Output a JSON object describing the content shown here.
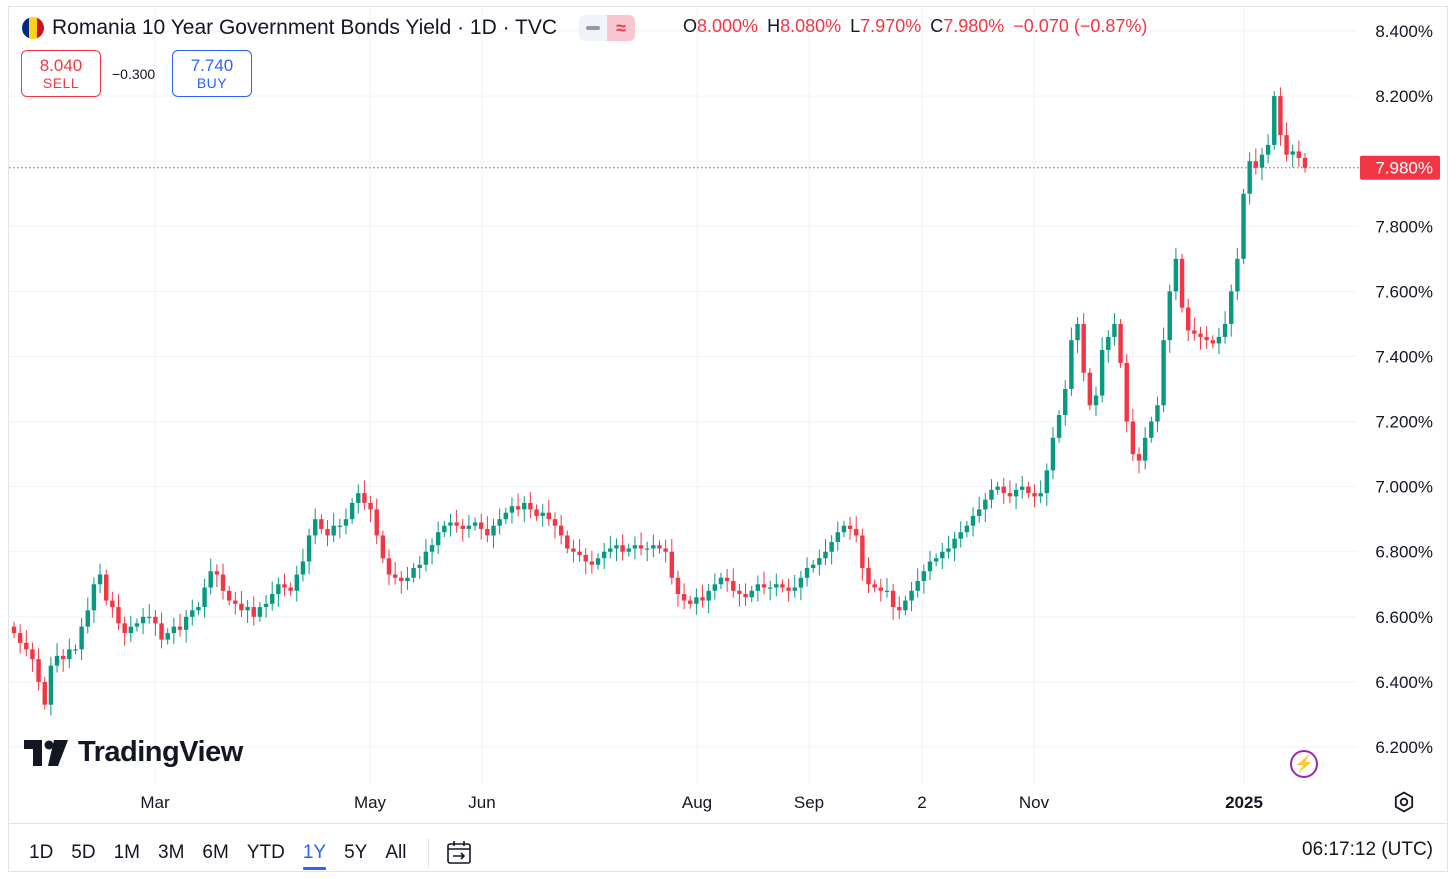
{
  "header": {
    "title": "Romania 10 Year Government Bonds Yield · 1D · TVC",
    "flag_colors": [
      "#002B7F",
      "#FCD116",
      "#CE1126"
    ],
    "ohlc": [
      {
        "key": "O",
        "value": "8.000%"
      },
      {
        "key": "H",
        "value": "8.080%"
      },
      {
        "key": "L",
        "value": "7.970%"
      },
      {
        "key": "C",
        "value": "7.980%"
      }
    ],
    "change": "−0.070 (−0.87%)"
  },
  "trade": {
    "sell_price": "8.040",
    "sell_label": "SELL",
    "spread": "−0.300",
    "buy_price": "7.740",
    "buy_label": "BUY"
  },
  "logo": {
    "text": "TradingView"
  },
  "toolbar": {
    "ranges": [
      "1D",
      "5D",
      "1M",
      "3M",
      "6M",
      "YTD",
      "1Y",
      "5Y",
      "All"
    ],
    "active_range": "1Y",
    "clock": "06:17:12 (UTC)"
  },
  "colors": {
    "up": "#089981",
    "down": "#F23645",
    "accent": "#2962FF",
    "grid": "#F0F3FA"
  },
  "chart_data": {
    "type": "candlestick",
    "y_ticks": [
      "8.400%",
      "8.200%",
      "7.800%",
      "7.600%",
      "7.400%",
      "7.200%",
      "7.000%",
      "6.800%",
      "6.600%",
      "6.400%",
      "6.200%"
    ],
    "ylim": [
      6.16,
      8.46
    ],
    "x_ticks": [
      "Mar",
      "May",
      "Jun",
      "Aug",
      "Sep",
      "2",
      "Nov",
      "2025"
    ],
    "last_value": 7.98,
    "last_label": "7.980%",
    "close_series": [
      6.55,
      6.52,
      6.5,
      6.47,
      6.4,
      6.33,
      6.45,
      6.48,
      6.47,
      6.5,
      6.5,
      6.57,
      6.62,
      6.7,
      6.73,
      6.65,
      6.63,
      6.58,
      6.55,
      6.57,
      6.58,
      6.6,
      6.6,
      6.58,
      6.53,
      6.55,
      6.57,
      6.56,
      6.6,
      6.62,
      6.63,
      6.69,
      6.74,
      6.73,
      6.68,
      6.65,
      6.64,
      6.62,
      6.63,
      6.6,
      6.63,
      6.64,
      6.67,
      6.7,
      6.69,
      6.68,
      6.73,
      6.77,
      6.85,
      6.9,
      6.87,
      6.85,
      6.88,
      6.88,
      6.9,
      6.95,
      6.98,
      6.95,
      6.93,
      6.85,
      6.78,
      6.73,
      6.72,
      6.71,
      6.72,
      6.75,
      6.76,
      6.8,
      6.82,
      6.86,
      6.88,
      6.89,
      6.88,
      6.87,
      6.88,
      6.89,
      6.87,
      6.85,
      6.88,
      6.9,
      6.92,
      6.94,
      6.93,
      6.95,
      6.93,
      6.91,
      6.92,
      6.9,
      6.88,
      6.85,
      6.81,
      6.8,
      6.79,
      6.77,
      6.76,
      6.78,
      6.8,
      6.81,
      6.82,
      6.8,
      6.81,
      6.82,
      6.81,
      6.81,
      6.82,
      6.81,
      6.8,
      6.72,
      6.67,
      6.65,
      6.64,
      6.66,
      6.65,
      6.68,
      6.7,
      6.72,
      6.71,
      6.68,
      6.67,
      6.66,
      6.68,
      6.7,
      6.69,
      6.69,
      6.7,
      6.69,
      6.68,
      6.69,
      6.72,
      6.75,
      6.76,
      6.78,
      6.8,
      6.83,
      6.86,
      6.88,
      6.87,
      6.85,
      6.75,
      6.7,
      6.69,
      6.68,
      6.68,
      6.63,
      6.62,
      6.65,
      6.68,
      6.71,
      6.74,
      6.77,
      6.78,
      6.8,
      6.81,
      6.84,
      6.86,
      6.88,
      6.91,
      6.93,
      6.96,
      6.99,
      7.0,
      6.98,
      6.97,
      6.99,
      7.0,
      6.98,
      6.97,
      6.98,
      7.05,
      7.15,
      7.22,
      7.3,
      7.45,
      7.5,
      7.35,
      7.25,
      7.28,
      7.42,
      7.46,
      7.5,
      7.38,
      7.2,
      7.1,
      7.08,
      7.15,
      7.2,
      7.25,
      7.45,
      7.6,
      7.7,
      7.55,
      7.48,
      7.47,
      7.46,
      7.45,
      7.44,
      7.46,
      7.5,
      7.6,
      7.7,
      7.9,
      8.0,
      7.98,
      8.02,
      8.05,
      8.2,
      8.08,
      8.02,
      8.03,
      8.01,
      7.98
    ]
  }
}
